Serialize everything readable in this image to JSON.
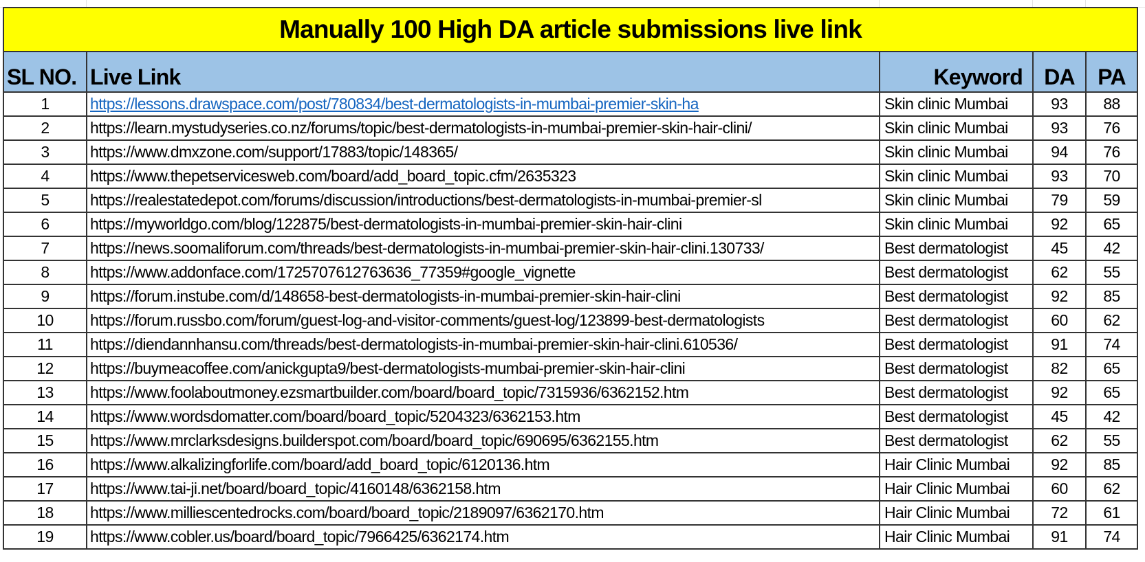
{
  "title": "Manually 100 High DA article submissions live link",
  "headers": {
    "sl": "SL NO.",
    "link": "Live Link",
    "keyword": "Keyword",
    "da": "DA",
    "pa": "PA"
  },
  "colors": {
    "title_bg": "#ffff00",
    "header_bg": "#9dc3e6",
    "link": "#1565c0"
  },
  "rows": [
    {
      "sl": "1",
      "link": "https://lessons.drawspace.com/post/780834/best-dermatologists-in-mumbai-premier-skin-ha",
      "keyword": "Skin clinic Mumbai",
      "da": "93",
      "pa": "88"
    },
    {
      "sl": "2",
      "link": "https://learn.mystudyseries.co.nz/forums/topic/best-dermatologists-in-mumbai-premier-skin-hair-clini/",
      "keyword": "Skin clinic Mumbai",
      "da": "93",
      "pa": "76"
    },
    {
      "sl": "3",
      "link": "https://www.dmxzone.com/support/17883/topic/148365/",
      "keyword": "Skin clinic Mumbai",
      "da": "94",
      "pa": "76"
    },
    {
      "sl": "4",
      "link": "https://www.thepetservicesweb.com/board/add_board_topic.cfm/2635323",
      "keyword": "Skin clinic Mumbai",
      "da": "93",
      "pa": "70"
    },
    {
      "sl": "5",
      "link": "https://realestatedepot.com/forums/discussion/introductions/best-dermatologists-in-mumbai-premier-sl",
      "keyword": "Skin clinic Mumbai",
      "da": "79",
      "pa": "59"
    },
    {
      "sl": "6",
      "link": "https://myworldgo.com/blog/122875/best-dermatologists-in-mumbai-premier-skin-hair-clini",
      "keyword": "Skin clinic Mumbai",
      "da": "92",
      "pa": "65"
    },
    {
      "sl": "7",
      "link": "https://news.soomaliforum.com/threads/best-dermatologists-in-mumbai-premier-skin-hair-clini.130733/",
      "keyword": "Best dermatologist",
      "da": "45",
      "pa": "42"
    },
    {
      "sl": "8",
      "link": "https://www.addonface.com/1725707612763636_77359#google_vignette",
      "keyword": "Best dermatologist",
      "da": "62",
      "pa": "55"
    },
    {
      "sl": "9",
      "link": "https://forum.instube.com/d/148658-best-dermatologists-in-mumbai-premier-skin-hair-clini",
      "keyword": "Best dermatologist",
      "da": "92",
      "pa": "85"
    },
    {
      "sl": "10",
      "link": "https://forum.russbo.com/forum/guest-log-and-visitor-comments/guest-log/123899-best-dermatologists",
      "keyword": "Best dermatologist",
      "da": "60",
      "pa": "62"
    },
    {
      "sl": "11",
      "link": "https://diendannhansu.com/threads/best-dermatologists-in-mumbai-premier-skin-hair-clini.610536/",
      "keyword": "Best dermatologist",
      "da": "91",
      "pa": "74"
    },
    {
      "sl": "12",
      "link": "https://buymeacoffee.com/anickgupta9/best-dermatologists-mumbai-premier-skin-hair-clini",
      "keyword": "Best dermatologist",
      "da": "82",
      "pa": "65"
    },
    {
      "sl": "13",
      "link": "https://www.foolaboutmoney.ezsmartbuilder.com/board/board_topic/7315936/6362152.htm",
      "keyword": "Best dermatologist",
      "da": "92",
      "pa": "65"
    },
    {
      "sl": "14",
      "link": "https://www.wordsdomatter.com/board/board_topic/5204323/6362153.htm",
      "keyword": "Best dermatologist",
      "da": "45",
      "pa": "42"
    },
    {
      "sl": "15",
      "link": "https://www.mrclarksdesigns.builderspot.com/board/board_topic/690695/6362155.htm",
      "keyword": "Best dermatologist",
      "da": "62",
      "pa": "55"
    },
    {
      "sl": "16",
      "link": "https://www.alkalizingforlife.com/board/add_board_topic/6120136.htm",
      "keyword": "Hair Clinic Mumbai",
      "da": "92",
      "pa": "85"
    },
    {
      "sl": "17",
      "link": "https://www.tai-ji.net/board/board_topic/4160148/6362158.htm",
      "keyword": "Hair Clinic Mumbai",
      "da": "60",
      "pa": "62"
    },
    {
      "sl": "18",
      "link": "https://www.milliescentedrocks.com/board/board_topic/2189097/6362170.htm",
      "keyword": "Hair Clinic Mumbai",
      "da": "72",
      "pa": "61"
    },
    {
      "sl": "19",
      "link": "https://www.cobler.us/board/board_topic/7966425/6362174.htm",
      "keyword": "Hair Clinic Mumbai",
      "da": "91",
      "pa": "74"
    }
  ]
}
